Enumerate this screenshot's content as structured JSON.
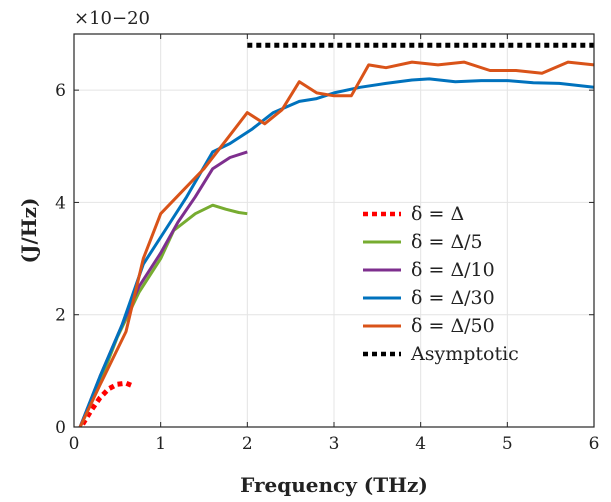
{
  "chart_data": {
    "type": "line",
    "xlabel": "Frequency (THz)",
    "ylabel": "(J/Hz)",
    "y_scale_factor": "×10−20",
    "xlim": [
      0,
      6
    ],
    "ylim": [
      0,
      7
    ],
    "xticks": [
      "0",
      "1",
      "2",
      "3",
      "4",
      "5",
      "6"
    ],
    "yticks": [
      "0",
      "2",
      "4",
      "6"
    ],
    "xtick_values": [
      0,
      1,
      2,
      3,
      4,
      5,
      6
    ],
    "ytick_values": [
      0,
      2,
      4,
      6
    ],
    "grid": true,
    "legend_position": "right",
    "series": [
      {
        "name": "δ = Δ",
        "color": "#ff0000",
        "style": "dotted",
        "x": [
          0.1,
          0.2,
          0.3,
          0.4,
          0.5,
          0.6,
          0.7
        ],
        "y": [
          0.05,
          0.3,
          0.52,
          0.68,
          0.76,
          0.78,
          0.72
        ]
      },
      {
        "name": "δ = Δ/5",
        "color": "#77ac30",
        "style": "solid",
        "x": [
          0.07,
          0.25,
          0.5,
          0.75,
          1.0,
          1.15,
          1.4,
          1.6,
          1.75,
          1.9,
          2.0
        ],
        "y": [
          0.0,
          0.6,
          1.6,
          2.4,
          3.0,
          3.5,
          3.8,
          3.95,
          3.88,
          3.82,
          3.8
        ]
      },
      {
        "name": "δ = Δ/10",
        "color": "#7e2f8e",
        "style": "solid",
        "x": [
          0.07,
          0.3,
          0.55,
          0.75,
          1.0,
          1.2,
          1.4,
          1.6,
          1.8,
          2.0
        ],
        "y": [
          0.0,
          0.9,
          1.8,
          2.5,
          3.1,
          3.65,
          4.1,
          4.6,
          4.8,
          4.9
        ]
      },
      {
        "name": "δ = Δ/30",
        "color": "#0072bd",
        "style": "solid",
        "x": [
          0.07,
          0.3,
          0.55,
          0.8,
          1.05,
          1.3,
          1.6,
          1.8,
          2.05,
          2.3,
          2.6,
          2.8,
          3.0,
          3.3,
          3.6,
          3.9,
          4.1,
          4.4,
          4.7,
          5.0,
          5.3,
          5.6,
          6.0
        ],
        "y": [
          0.0,
          0.9,
          1.8,
          2.9,
          3.5,
          4.1,
          4.9,
          5.05,
          5.3,
          5.6,
          5.8,
          5.85,
          5.95,
          6.05,
          6.12,
          6.18,
          6.2,
          6.15,
          6.17,
          6.17,
          6.13,
          6.12,
          6.05
        ]
      },
      {
        "name": "δ = Δ/50",
        "color": "#d95319",
        "style": "solid",
        "x": [
          0.07,
          0.3,
          0.6,
          0.8,
          1.0,
          1.25,
          1.5,
          1.75,
          2.0,
          2.2,
          2.4,
          2.6,
          2.8,
          3.0,
          3.2,
          3.4,
          3.6,
          3.9,
          4.2,
          4.5,
          4.8,
          5.1,
          5.4,
          5.7,
          6.0
        ],
        "y": [
          0.0,
          0.75,
          1.7,
          3.0,
          3.8,
          4.2,
          4.6,
          5.1,
          5.6,
          5.4,
          5.65,
          6.15,
          5.95,
          5.9,
          5.9,
          6.45,
          6.4,
          6.5,
          6.45,
          6.5,
          6.35,
          6.35,
          6.3,
          6.5,
          6.45
        ]
      },
      {
        "name": "Asymptotic",
        "color": "#000000",
        "style": "dotted",
        "x": [
          2.0,
          6.0
        ],
        "y": [
          6.8,
          6.8
        ]
      }
    ]
  }
}
